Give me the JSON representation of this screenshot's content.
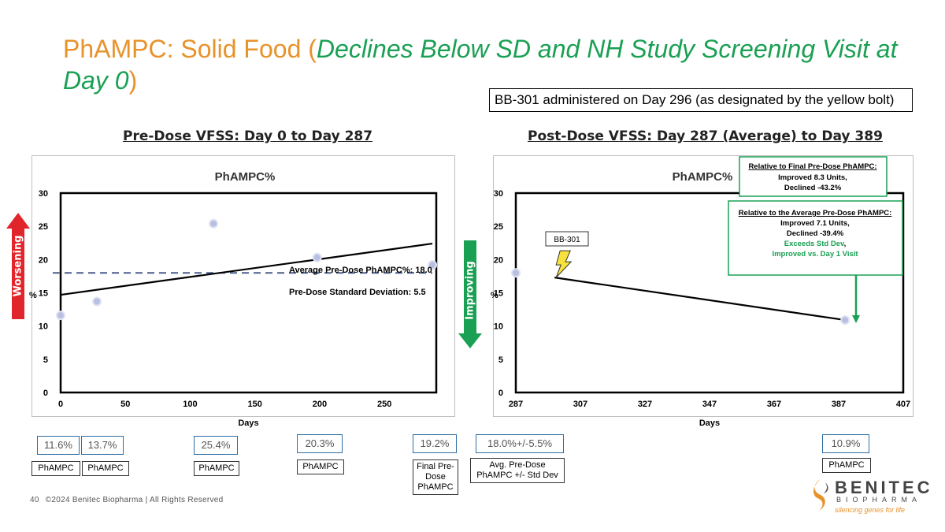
{
  "title": {
    "part1": "PhAMPC: Solid Food (",
    "part2": "Declines Below SD and NH Study Screening Visit at Day 0",
    "part3": ")"
  },
  "admin_note": "BB-301 administered on Day 296 (as designated by the yellow bolt)",
  "left_section_title": "Pre-Dose VFSS: Day 0 to Day 287",
  "right_section_title": "Post-Dose VFSS: Day 287 (Average) to Day 389",
  "worsening_label": "Worsening",
  "improving_label": "Improving",
  "colors": {
    "orange": "#e8922a",
    "green": "#1aa053",
    "red": "#e0262b",
    "dashed": "#4a5f8a"
  },
  "chart_data": [
    {
      "type": "scatter",
      "title": "PhAMPC%",
      "xlabel": "Days",
      "ylabel": "%",
      "xlim": [
        0,
        290
      ],
      "ylim": [
        0,
        30
      ],
      "xticks": [
        0,
        50,
        100,
        150,
        200,
        250
      ],
      "yticks": [
        0,
        5,
        10,
        15,
        20,
        25,
        30
      ],
      "series": [
        {
          "name": "",
          "points": [
            [
              0,
              11.6
            ],
            [
              28,
              13.7
            ],
            [
              118,
              25.4
            ],
            [
              198,
              20.3
            ],
            [
              287,
              19.2
            ]
          ]
        }
      ],
      "trendline": {
        "x": [
          0,
          287
        ],
        "y": [
          14.7,
          22.4
        ]
      },
      "average_line": {
        "y": 18.0
      },
      "annotations": [
        "Average Pre-Dose PhAMPC%: 18.0",
        "Pre-Dose Standard Deviation: 5.5"
      ]
    },
    {
      "type": "line",
      "title": "PhAMPC%",
      "xlabel": "Days",
      "ylabel": "%",
      "xlim": [
        287,
        407
      ],
      "ylim": [
        0,
        30
      ],
      "xticks": [
        287,
        307,
        327,
        347,
        367,
        387,
        407
      ],
      "yticks": [
        0,
        5,
        10,
        15,
        20,
        25,
        30
      ],
      "series": [
        {
          "name": "",
          "points": [
            [
              287,
              18.0
            ],
            [
              299,
              17.3
            ],
            [
              389,
              10.9
            ]
          ]
        }
      ],
      "dose_marker": {
        "day": 296,
        "label": "BB-301"
      },
      "callout_top": [
        "Relative to Final Pre-Dose PhAMPC:",
        "Improved 8.3 Units,",
        "Declined -43.2%"
      ],
      "callout_mid": [
        "Relative to the Average Pre-Dose PhAMPC:",
        "Improved 7.1 Units,",
        "Declined -39.4%",
        "Exceeds Std Dev",
        ",",
        "Improved vs. Day 1 Visit"
      ]
    }
  ],
  "value_boxes": [
    {
      "value": "11.6%",
      "label": "PhAMPC"
    },
    {
      "value": "13.7%",
      "label": "PhAMPC"
    },
    {
      "value": "25.4%",
      "label": "PhAMPC"
    },
    {
      "value": "20.3%",
      "label": "PhAMPC"
    },
    {
      "value": "19.2%",
      "label": "Final Pre-Dose PhAMPC"
    },
    {
      "value": "18.0%+/-5.5%",
      "label": "Avg. Pre-Dose PhAMPC +/- Std Dev"
    },
    {
      "value": "10.9%",
      "label": "PhAMPC"
    }
  ],
  "footer": {
    "page": "40",
    "text": "©2024 Benitec Biopharma | All Rights Reserved"
  },
  "logo": {
    "name": "BENITEC",
    "sub": "BIOPHARMA",
    "tagline": "silencing genes for life"
  }
}
